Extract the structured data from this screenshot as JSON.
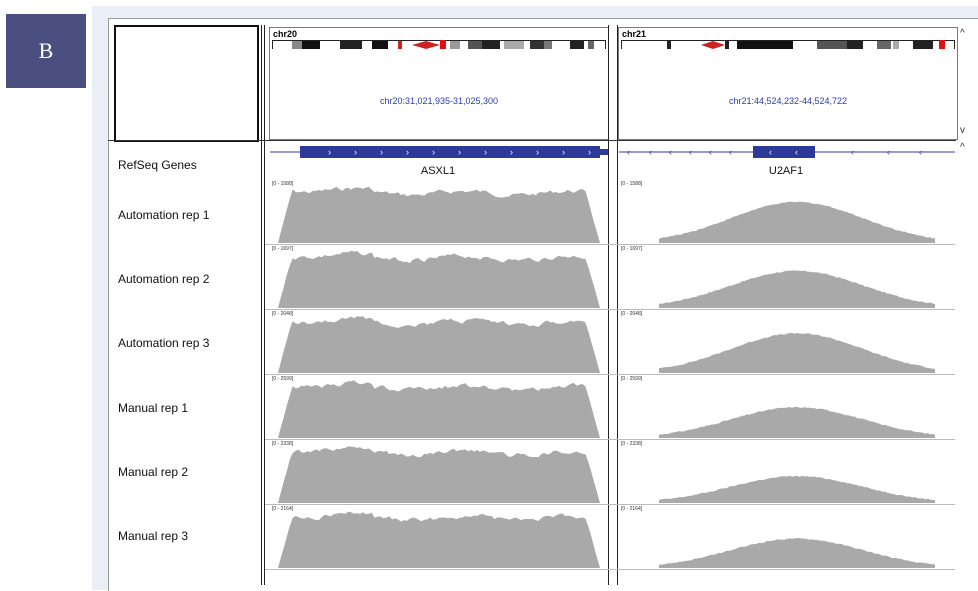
{
  "panel_label": "B",
  "colors": {
    "badge": "#4a4f7f",
    "coverage": "#a9a9a9",
    "gene": "#2e3a9a",
    "centromere": "#cc2222",
    "locus_text": "#2b3aa8"
  },
  "header": {
    "left": {
      "chromosome": "chr20",
      "locus": "chr20:31,021,935-31,025,300"
    },
    "right": {
      "chromosome": "chr21",
      "locus": "chr21:44,524,232-44,524,722"
    }
  },
  "gene_track": {
    "name": "RefSeq Genes",
    "left_gene": "ASXL1",
    "right_gene": "U2AF1",
    "left_strand_glyph": "›",
    "right_strand_glyph": "‹"
  },
  "tracks": [
    {
      "name": "Automation rep 1",
      "left_range": "[0 - 1588]",
      "right_range": "[0 - 1588]"
    },
    {
      "name": "Automation rep 2",
      "left_range": "[0 - 1697]",
      "right_range": "[0 - 1697]"
    },
    {
      "name": "Automation rep 3",
      "left_range": "[0 - 2048]",
      "right_range": "[0 - 2048]"
    },
    {
      "name": "Manual rep 1",
      "left_range": "[0 - 2599]",
      "right_range": "[0 - 2599]"
    },
    {
      "name": "Manual rep 2",
      "left_range": "[0 - 2338]",
      "right_range": "[0 - 2338]"
    },
    {
      "name": "Manual rep 3",
      "left_range": "[0 - 2164]",
      "right_range": "[0 - 2164]"
    }
  ],
  "scroll_glyphs": {
    "up": "^",
    "down": "v"
  }
}
